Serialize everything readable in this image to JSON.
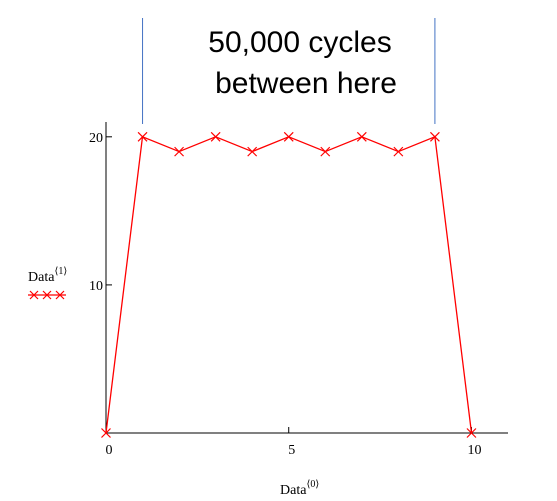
{
  "chart_data": {
    "type": "line",
    "x": [
      0,
      1,
      2,
      3,
      4,
      5,
      6,
      7,
      8,
      9,
      10
    ],
    "series": [
      {
        "values": [
          0,
          20,
          19,
          20,
          19,
          20,
          19,
          20,
          19,
          20,
          0
        ]
      }
    ],
    "xlabel": {
      "main": "Data",
      "sup": "⟨0⟩"
    },
    "ylabel": {
      "main": "Data",
      "sup": "⟨1⟩"
    },
    "xlim": [
      0,
      11
    ],
    "ylim": [
      0,
      21
    ],
    "x_ticks": [
      0,
      5,
      10
    ],
    "y_ticks": [
      10,
      20
    ],
    "grid": false,
    "marker": "x",
    "colors": {
      "line": "#ff0000",
      "axis": "#000000",
      "annotation_line": "#4472c4"
    },
    "annotation": {
      "lines": [
        "50,000 cycles",
        "between here"
      ],
      "marker_x": [
        1,
        9
      ]
    }
  }
}
